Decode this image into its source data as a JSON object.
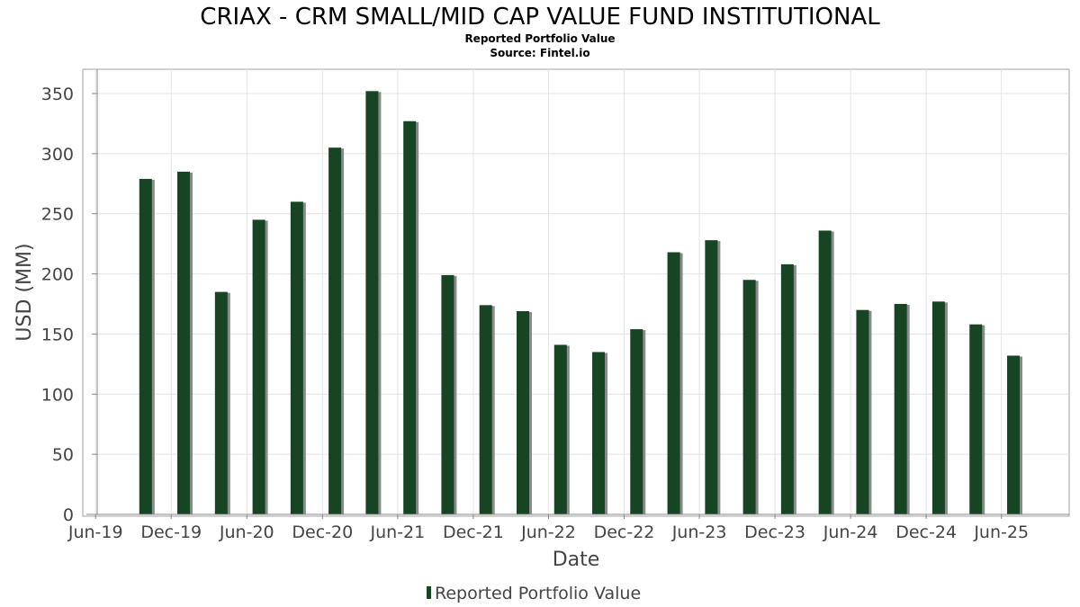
{
  "colors": {
    "bar": "#174524",
    "bar_shadow": "#8a8a8a",
    "grid": "#e2e2e2",
    "axis": "#888888"
  },
  "chart_data": {
    "type": "bar",
    "title": "CRIAX - CRM SMALL/MID CAP VALUE FUND INSTITUTIONAL",
    "subtitle_lines": [
      "Reported Portfolio Value",
      "Source: Fintel.io"
    ],
    "xlabel": "Date",
    "ylabel": "USD (MM)",
    "ylim": [
      0,
      370
    ],
    "yticks": [
      0,
      50,
      100,
      150,
      200,
      250,
      300,
      350
    ],
    "xlim": [
      "2019-05-01",
      "2025-11-12"
    ],
    "xticks": [
      {
        "date": "2019-06-01",
        "label": "Jun-19"
      },
      {
        "date": "2019-12-01",
        "label": "Dec-19"
      },
      {
        "date": "2020-06-01",
        "label": "Jun-20"
      },
      {
        "date": "2020-12-01",
        "label": "Dec-20"
      },
      {
        "date": "2021-06-01",
        "label": "Jun-21"
      },
      {
        "date": "2021-12-01",
        "label": "Dec-21"
      },
      {
        "date": "2022-06-01",
        "label": "Jun-22"
      },
      {
        "date": "2022-12-01",
        "label": "Dec-22"
      },
      {
        "date": "2023-06-01",
        "label": "Jun-23"
      },
      {
        "date": "2023-12-01",
        "label": "Dec-23"
      },
      {
        "date": "2024-06-01",
        "label": "Jun-24"
      },
      {
        "date": "2024-12-01",
        "label": "Dec-24"
      },
      {
        "date": "2025-06-01",
        "label": "Jun-25"
      }
    ],
    "grid": true,
    "legend": {
      "position": "bottom-center",
      "entries": [
        "Reported Portfolio Value"
      ]
    },
    "series": [
      {
        "name": "Reported Portfolio Value",
        "points": [
          {
            "date": "2019-09-30",
            "value": 279
          },
          {
            "date": "2019-12-31",
            "value": 285
          },
          {
            "date": "2020-03-31",
            "value": 185
          },
          {
            "date": "2020-06-30",
            "value": 245
          },
          {
            "date": "2020-09-30",
            "value": 260
          },
          {
            "date": "2020-12-31",
            "value": 305
          },
          {
            "date": "2021-03-31",
            "value": 352
          },
          {
            "date": "2021-06-30",
            "value": 327
          },
          {
            "date": "2021-09-30",
            "value": 199
          },
          {
            "date": "2021-12-31",
            "value": 174
          },
          {
            "date": "2022-03-31",
            "value": 169
          },
          {
            "date": "2022-06-30",
            "value": 141
          },
          {
            "date": "2022-09-30",
            "value": 135
          },
          {
            "date": "2022-12-31",
            "value": 154
          },
          {
            "date": "2023-03-31",
            "value": 218
          },
          {
            "date": "2023-06-30",
            "value": 228
          },
          {
            "date": "2023-09-30",
            "value": 195
          },
          {
            "date": "2023-12-31",
            "value": 208
          },
          {
            "date": "2024-03-31",
            "value": 236
          },
          {
            "date": "2024-06-30",
            "value": 170
          },
          {
            "date": "2024-09-30",
            "value": 175
          },
          {
            "date": "2024-12-31",
            "value": 177
          },
          {
            "date": "2025-03-31",
            "value": 158
          },
          {
            "date": "2025-06-30",
            "value": 132
          }
        ]
      }
    ]
  }
}
